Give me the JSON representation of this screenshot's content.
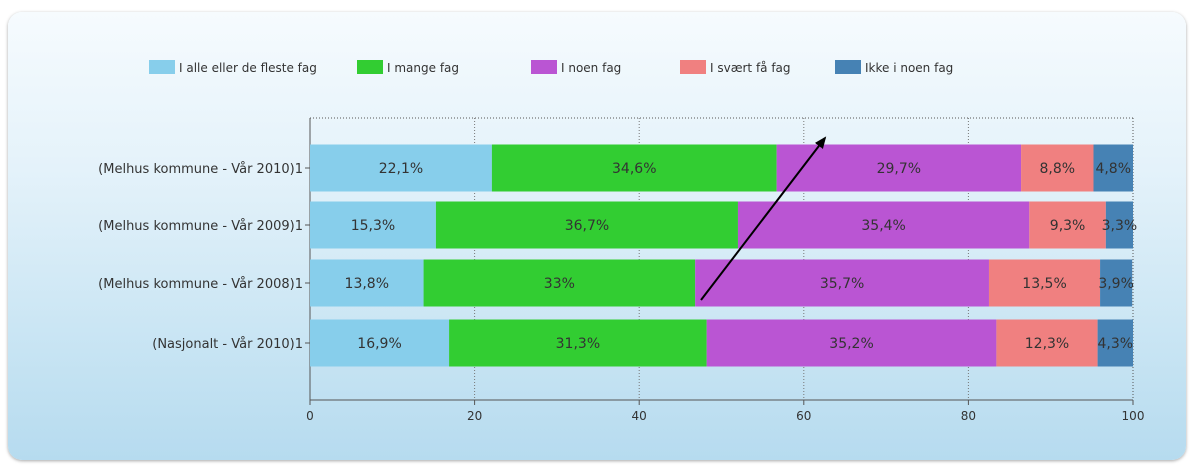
{
  "chart_data": {
    "type": "bar",
    "stacked": true,
    "orientation": "horizontal",
    "categories": [
      "(Melhus kommune - Vår 2010)1",
      "(Melhus kommune - Vår 2009)1",
      "(Melhus kommune - Vår 2008)1",
      "(Nasjonalt - Vår 2010)1"
    ],
    "series": [
      {
        "name": "I alle eller de fleste fag",
        "color": "#87ceeb",
        "values": [
          22.1,
          15.3,
          13.8,
          16.9
        ],
        "labels": [
          "22,1%",
          "15,3%",
          "13,8%",
          "16,9%"
        ]
      },
      {
        "name": "I mange fag",
        "color": "#32cd32",
        "values": [
          34.6,
          36.7,
          33,
          31.3
        ],
        "labels": [
          "34,6%",
          "36,7%",
          "33%",
          "31,3%"
        ]
      },
      {
        "name": "I noen fag",
        "color": "#ba55d3",
        "values": [
          29.7,
          35.4,
          35.7,
          35.2
        ],
        "labels": [
          "29,7%",
          "35,4%",
          "35,7%",
          "35,2%"
        ]
      },
      {
        "name": "I svært få fag",
        "color": "#f08080",
        "values": [
          8.8,
          9.3,
          13.5,
          12.3
        ],
        "labels": [
          "8,8%",
          "9,3%",
          "13,5%",
          "12,3%"
        ]
      },
      {
        "name": "Ikke i noen fag",
        "color": "#4682b4",
        "values": [
          4.8,
          3.3,
          3.9,
          4.3
        ],
        "labels": [
          "4,8%",
          "3,3%",
          "3,9%",
          "4,3%"
        ]
      }
    ],
    "xlim": [
      0,
      100
    ],
    "xticks": [
      "0",
      "20",
      "40",
      "60",
      "80",
      "100"
    ],
    "grid": "vertical dotted",
    "legend": "top"
  }
}
